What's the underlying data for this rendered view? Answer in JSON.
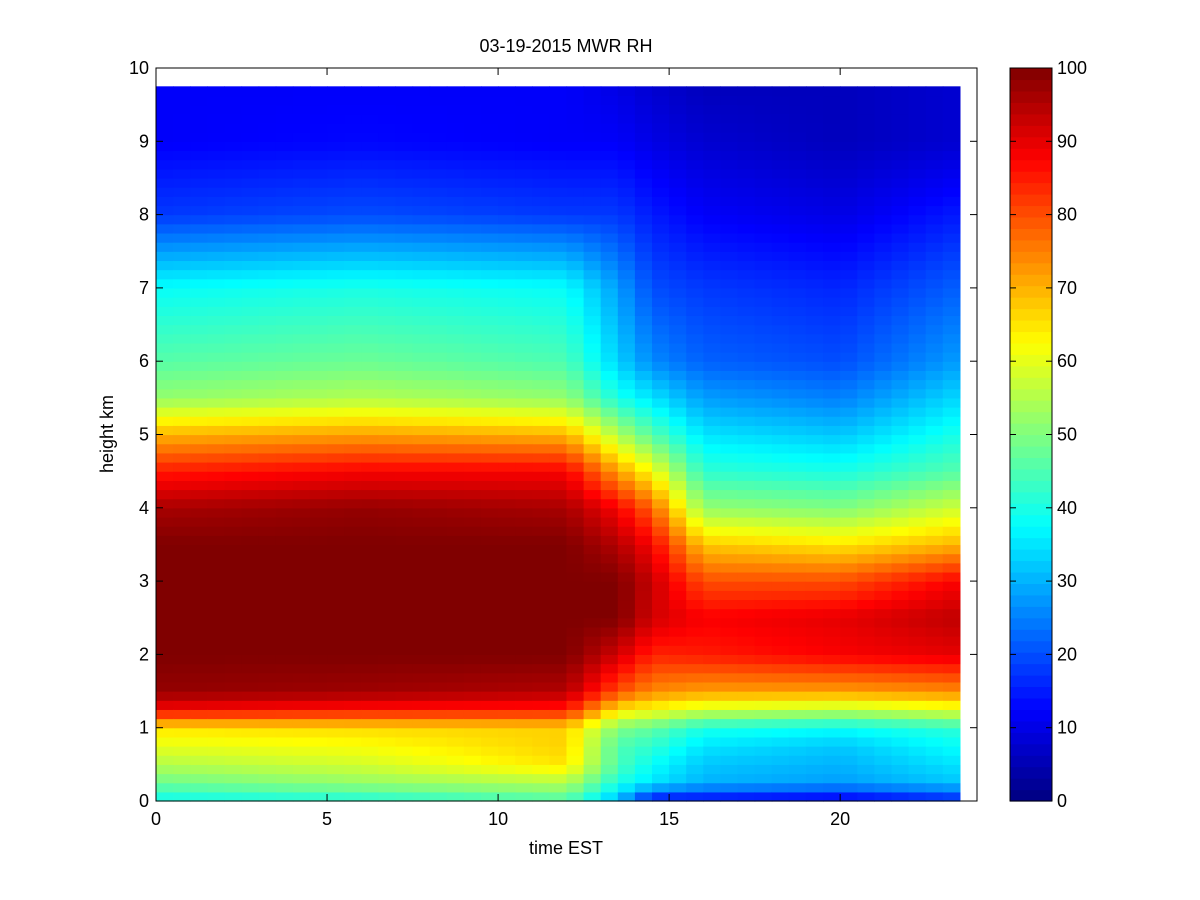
{
  "chart_data": {
    "type": "heatmap",
    "title": "03-19-2015 MWR RH",
    "xlabel": "time EST",
    "ylabel": "height km",
    "xlim": [
      0,
      24
    ],
    "ylim": [
      0,
      10
    ],
    "xticks": [
      "0",
      "5",
      "10",
      "15",
      "20"
    ],
    "yticks": [
      "0",
      "1",
      "2",
      "3",
      "4",
      "5",
      "6",
      "7",
      "8",
      "9",
      "10"
    ],
    "colorbar": {
      "colormap": "jet",
      "clim": [
        0,
        100
      ],
      "ticks": [
        "0",
        "10",
        "20",
        "30",
        "40",
        "50",
        "60",
        "70",
        "80",
        "90",
        "100"
      ]
    },
    "data_extent": {
      "x": [
        0,
        23.5
      ],
      "y": [
        0,
        9.75
      ]
    },
    "grid": false,
    "profile_heights_km": [
      0,
      0.25,
      0.5,
      0.75,
      1.0,
      1.25,
      1.5,
      2.0,
      2.5,
      3.0,
      3.5,
      4.0,
      4.5,
      5.0,
      5.5,
      6.0,
      7.0,
      8.0,
      9.0,
      9.75
    ],
    "profiles": [
      {
        "t": 0,
        "rh": [
          38,
          48,
          55,
          60,
          65,
          88,
          98,
          100,
          100,
          100,
          100,
          96,
          85,
          70,
          52,
          46,
          38,
          18,
          12,
          12
        ]
      },
      {
        "t": 6,
        "rh": [
          40,
          52,
          58,
          62,
          66,
          86,
          97,
          100,
          100,
          100,
          100,
          98,
          88,
          72,
          55,
          48,
          40,
          20,
          13,
          12
        ]
      },
      {
        "t": 12,
        "rh": [
          45,
          55,
          65,
          67,
          67,
          85,
          95,
          100,
          100,
          100,
          100,
          96,
          88,
          70,
          52,
          45,
          38,
          18,
          12,
          12
        ]
      },
      {
        "t": 13.5,
        "rh": [
          30,
          40,
          45,
          45,
          50,
          65,
          80,
          92,
          100,
          100,
          95,
          88,
          72,
          55,
          40,
          33,
          28,
          18,
          12,
          10
        ]
      },
      {
        "t": 14.5,
        "rh": [
          12,
          35,
          38,
          42,
          47,
          62,
          74,
          84,
          92,
          93,
          88,
          78,
          62,
          46,
          35,
          26,
          20,
          15,
          10,
          8
        ]
      },
      {
        "t": 16,
        "rh": [
          12,
          30,
          32,
          35,
          40,
          58,
          72,
          85,
          88,
          80,
          68,
          52,
          42,
          35,
          28,
          22,
          18,
          12,
          8,
          6
        ]
      },
      {
        "t": 20,
        "rh": [
          10,
          28,
          30,
          32,
          38,
          56,
          72,
          88,
          90,
          80,
          65,
          50,
          40,
          32,
          25,
          20,
          16,
          10,
          6,
          6
        ]
      },
      {
        "t": 23.5,
        "rh": [
          15,
          32,
          35,
          38,
          42,
          60,
          74,
          90,
          94,
          88,
          70,
          58,
          46,
          40,
          34,
          28,
          22,
          15,
          8,
          8
        ]
      }
    ]
  }
}
